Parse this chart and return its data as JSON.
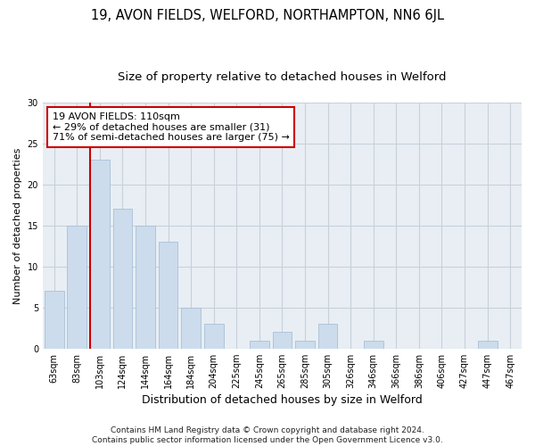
{
  "title": "19, AVON FIELDS, WELFORD, NORTHAMPTON, NN6 6JL",
  "subtitle": "Size of property relative to detached houses in Welford",
  "xlabel": "Distribution of detached houses by size in Welford",
  "ylabel": "Number of detached properties",
  "categories": [
    "63sqm",
    "83sqm",
    "103sqm",
    "124sqm",
    "144sqm",
    "164sqm",
    "184sqm",
    "204sqm",
    "225sqm",
    "245sqm",
    "265sqm",
    "285sqm",
    "305sqm",
    "326sqm",
    "346sqm",
    "366sqm",
    "386sqm",
    "406sqm",
    "427sqm",
    "447sqm",
    "467sqm"
  ],
  "values": [
    7,
    15,
    23,
    17,
    15,
    13,
    5,
    3,
    0,
    1,
    2,
    1,
    3,
    0,
    1,
    0,
    0,
    0,
    0,
    1,
    0
  ],
  "bar_color": "#ccdcec",
  "bar_edgecolor": "#a8c0d8",
  "vline_index": 2,
  "vline_color": "#cc0000",
  "annotation_line1": "19 AVON FIELDS: 110sqm",
  "annotation_line2": "← 29% of detached houses are smaller (31)",
  "annotation_line3": "71% of semi-detached houses are larger (75) →",
  "annotation_box_facecolor": "#ffffff",
  "annotation_box_edgecolor": "#cc0000",
  "ylim": [
    0,
    30
  ],
  "yticks": [
    0,
    5,
    10,
    15,
    20,
    25,
    30
  ],
  "grid_color": "#c8d0da",
  "fig_facecolor": "#ffffff",
  "ax_facecolor": "#e8eef4",
  "footer_line1": "Contains HM Land Registry data © Crown copyright and database right 2024.",
  "footer_line2": "Contains public sector information licensed under the Open Government Licence v3.0.",
  "title_fontsize": 10.5,
  "subtitle_fontsize": 9.5,
  "xlabel_fontsize": 9,
  "ylabel_fontsize": 8,
  "tick_fontsize": 7,
  "annotation_fontsize": 8,
  "footer_fontsize": 6.5
}
